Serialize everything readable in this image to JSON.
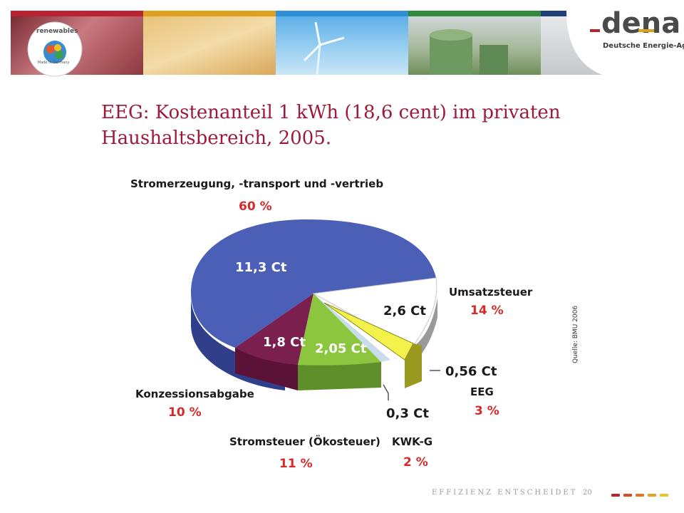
{
  "header": {
    "badge_text": "renewables",
    "badge_sub": "Made in Germany",
    "logo_name": "dena",
    "logo_subtitle": "Deutsche Energie-Agentur",
    "stripe_colors": [
      "#b8232f",
      "#e0a01f",
      "#2f8fd8",
      "#2f8a3a",
      "#1f3f7a"
    ]
  },
  "title": "EEG: Kostenanteil 1 kWh (18,6 cent) im privaten Haushaltsbereich, 2005.",
  "source_note": "Quelle: BMU 2006",
  "footer": {
    "tagline": "EFFIZIENZ ENTSCHEIDET",
    "page_number": "20",
    "dash_colors": [
      "#b8232f",
      "#d84a2a",
      "#e0781f",
      "#e8a01f",
      "#f0c020"
    ]
  },
  "chart_data": {
    "type": "pie",
    "total": "18,6 cent",
    "slices": [
      {
        "label": "Stromerzeugung, -transport und -vertrieb",
        "value_text": "11,3 Ct",
        "percent_text": "60 %",
        "value": 11.3,
        "color": "#4a5fb5"
      },
      {
        "label": "Umsatzsteuer",
        "value_text": "2,6 Ct",
        "percent_text": "14 %",
        "value": 2.6,
        "color": "#ffffff"
      },
      {
        "label": "EEG",
        "value_text": "0,56 Ct",
        "percent_text": "3 %",
        "value": 0.56,
        "color": "#f2f24a"
      },
      {
        "label": "KWK-G",
        "value_text": "0,3 Ct",
        "percent_text": "2 %",
        "value": 0.3,
        "color": "#c8dcec"
      },
      {
        "label": "Stromsteuer (Ökosteuer)",
        "value_text": "2,05 Ct",
        "percent_text": "11 %",
        "value": 2.05,
        "color": "#8cc63f"
      },
      {
        "label": "Konzessionsabgabe",
        "value_text": "1,8 Ct",
        "percent_text": "10 %",
        "value": 1.8,
        "color": "#7a1f4e"
      }
    ]
  }
}
